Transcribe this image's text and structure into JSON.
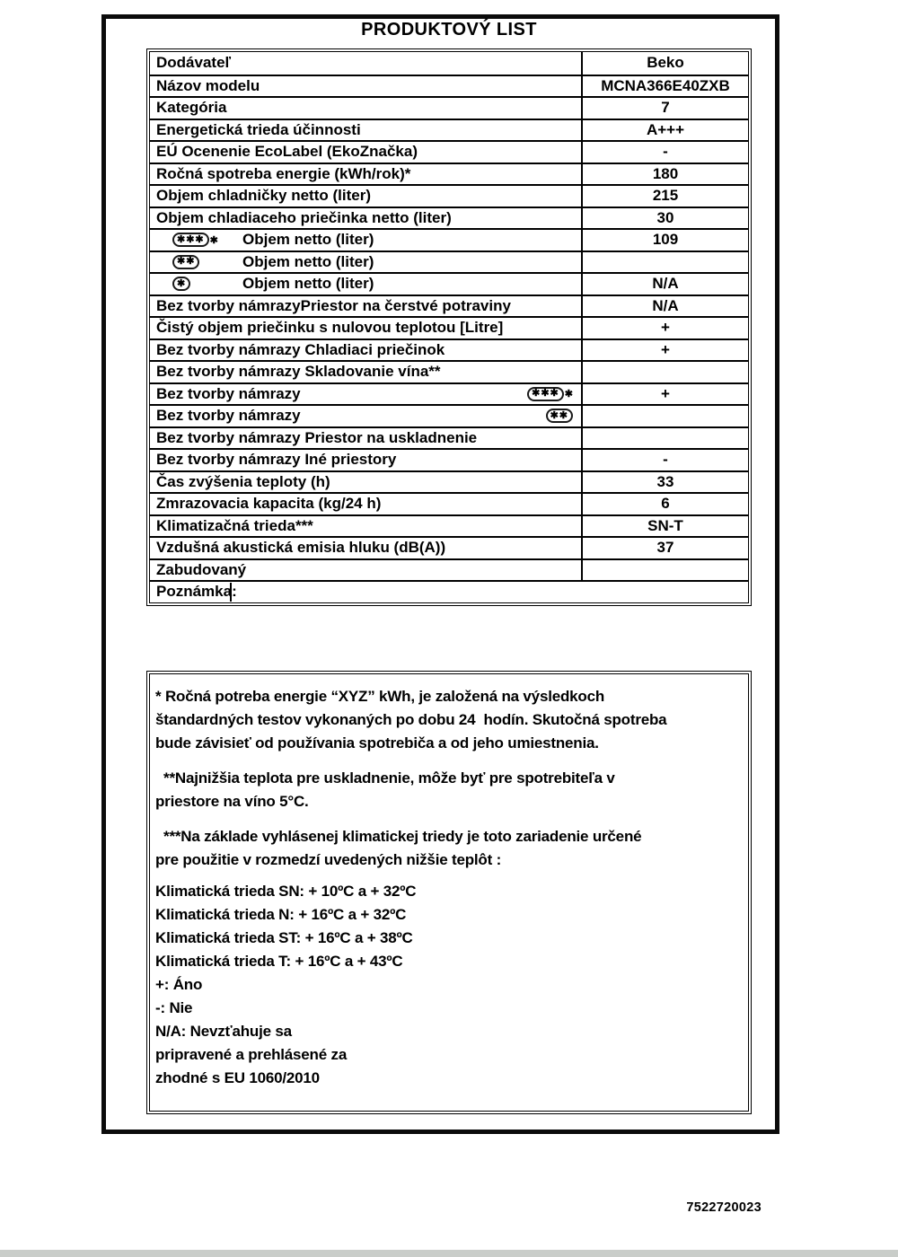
{
  "title": "PRODUKTOVÝ LIST",
  "doc_number": "7522720023",
  "table": {
    "star_char": "✱",
    "rows": [
      {
        "label": "Dodávateľ",
        "value": "Beko"
      },
      {
        "label": "Názov modelu",
        "value": "MCNA366E40ZXB"
      },
      {
        "label": "Kategória",
        "value": "7"
      },
      {
        "label": "Energetická trieda účinnosti",
        "value": "A+++"
      },
      {
        "label": "EÚ Ocenenie EcoLabel (EkoZnačka)",
        "value": "-"
      },
      {
        "label": "Ročná spotreba energie (kWh/rok)*",
        "value": "180"
      },
      {
        "label": "Objem chladničky netto (liter)",
        "value": "215"
      },
      {
        "label": "Objem chladiaceho priečinka netto (liter)",
        "value": "30"
      },
      {
        "label": "Objem netto (liter)",
        "value": "109",
        "stars_in_box": 3,
        "star_outside": true,
        "star_position": "left"
      },
      {
        "label": "Objem netto (liter)",
        "value": "",
        "stars_in_box": 2,
        "star_outside": false,
        "star_position": "left"
      },
      {
        "label": "Objem netto (liter)",
        "value": "N/A",
        "stars_in_box": 1,
        "star_outside": false,
        "star_position": "left"
      },
      {
        "label": "Bez tvorby námrazyPriestor na čerstvé potraviny",
        "value": "N/A"
      },
      {
        "label": "Čistý objem priečinku s nulovou teplotou [Litre]",
        "value": "+"
      },
      {
        "label": "Bez tvorby námrazy Chladiaci priečinok",
        "value": "+"
      },
      {
        "label": "Bez tvorby námrazy Skladovanie vína**",
        "value": ""
      },
      {
        "label": "Bez tvorby námrazy",
        "value": "+",
        "stars_in_box": 3,
        "star_outside": true,
        "star_position": "right"
      },
      {
        "label": "Bez tvorby námrazy",
        "value": "",
        "stars_in_box": 2,
        "star_outside": false,
        "star_position": "right"
      },
      {
        "label": "Bez tvorby námrazy Priestor na uskladnenie",
        "value": ""
      },
      {
        "label": "Bez tvorby námrazy Iné priestory",
        "value": "-"
      },
      {
        "label": "Čas zvýšenia teploty (h)",
        "value": "33"
      },
      {
        "label": "Zmrazovacia kapacita (kg/24 h)",
        "value": "6"
      },
      {
        "label": "Klimatizačná trieda***",
        "value": "SN-T"
      },
      {
        "label": "Vzdušná akustická emisia hluku (dB(A))",
        "value": "37"
      },
      {
        "label": "Zabudovaný",
        "value": ""
      },
      {
        "label": "Poznámka:",
        "value": "",
        "full_width": true
      }
    ]
  },
  "notes": {
    "paragraphs": [
      {
        "lines": [
          "* Ročná potreba energie “XYZ” kWh, je založená na výsledkoch",
          "štandardných testov vykonaných po dobu 24  hodín. Skutočná spotreba",
          "bude závisieť od používania spotrebiča a od jeho umiestnenia."
        ]
      },
      {
        "lines": [
          "  **Najnižšia teplota pre uskladnenie, môže byť pre spotrebiteľa v",
          "priestore na víno 5°C."
        ]
      },
      {
        "lines": [
          "  ***Na základe vyhlásenej klimatickej triedy je toto zariadenie určené",
          "pre použitie v rozmedzí uvedených nižšie teplôt :"
        ]
      },
      {
        "lines": [
          "Klimatická trieda SN: + 10ºC a + 32ºC",
          "Klimatická trieda N: + 16ºC a + 32ºC",
          "Klimatická trieda ST: + 16ºC a + 38ºC",
          "Klimatická trieda T: + 16ºC a + 43ºC",
          "+: Áno",
          "-: Nie",
          "N/A: Nevzťahuje sa",
          "pripravené a prehlásené za",
          "zhodné s EU 1060/2010"
        ]
      }
    ]
  }
}
